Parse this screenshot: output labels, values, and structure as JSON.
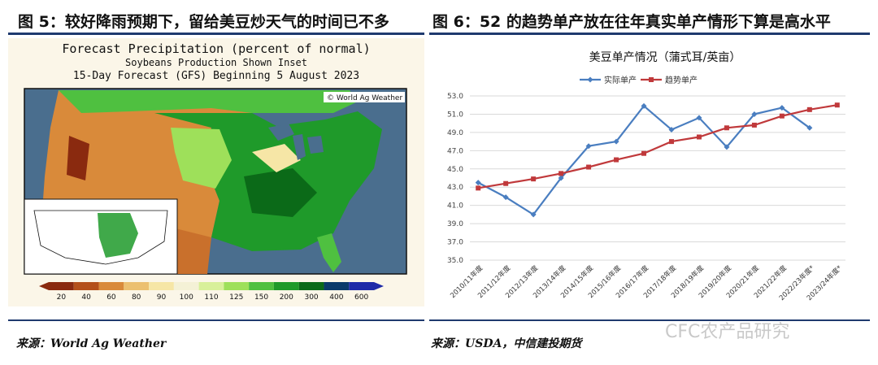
{
  "left_panel": {
    "title": "图 5：较好降雨预期下，留给美豆炒天气的时间已不多",
    "source": "来源：World Ag Weather",
    "map": {
      "title_line1": "Forecast Precipitation (percent of normal)",
      "title_line2": "Soybeans Production Shown Inset",
      "title_line3": "15-Day Forecast (GFS) Beginning 5 August 2023",
      "brand": "© World Ag Weather",
      "legend_values": [
        "20",
        "40",
        "60",
        "80",
        "90",
        "100",
        "110",
        "125",
        "150",
        "200",
        "300",
        "400",
        "600"
      ],
      "legend_colors": [
        "#8a2a0f",
        "#b4501a",
        "#d98a3a",
        "#ecc070",
        "#f6e6a6",
        "#f4f1d6",
        "#d8f09a",
        "#9ee05a",
        "#4fc040",
        "#1f9a2a",
        "#0b6a18",
        "#0a3a6a",
        "#1e2aa8"
      ]
    }
  },
  "right_panel": {
    "title": "图 6：52 的趋势单产放在往年真实单产情形下算是高水平",
    "source": "来源：USDA，中信建投期货",
    "watermark": "CFC农产品研究"
  },
  "chart_data": {
    "type": "line",
    "title": "美豆单产情况（蒲式耳/英亩）",
    "categories": [
      "2010/11年度",
      "2011/12年度",
      "2012/13年度",
      "2013/14年度",
      "2014/15年度",
      "2015/16年度",
      "2016/17年度",
      "2017/18年度",
      "2018/19年度",
      "2019/20年度",
      "2020/21年度",
      "2021/22年度",
      "2022/23年度*",
      "2023/24年度*"
    ],
    "series": [
      {
        "name": "实际单产",
        "color": "#4a7ec0",
        "values": [
          43.5,
          41.9,
          40.0,
          44.0,
          47.5,
          48.0,
          51.9,
          49.3,
          50.6,
          47.4,
          51.0,
          51.7,
          49.5,
          null
        ]
      },
      {
        "name": "趋势单产",
        "color": "#c0393b",
        "values": [
          42.9,
          43.4,
          43.9,
          44.5,
          45.2,
          46.0,
          46.7,
          48.0,
          48.5,
          49.5,
          49.8,
          50.8,
          51.5,
          52.0
        ]
      }
    ],
    "ylim": [
      35.0,
      53.0
    ],
    "yticks": [
      "35.0",
      "37.0",
      "39.0",
      "41.0",
      "43.0",
      "45.0",
      "47.0",
      "49.0",
      "51.0",
      "53.0"
    ],
    "grid": true,
    "legend": "top"
  }
}
